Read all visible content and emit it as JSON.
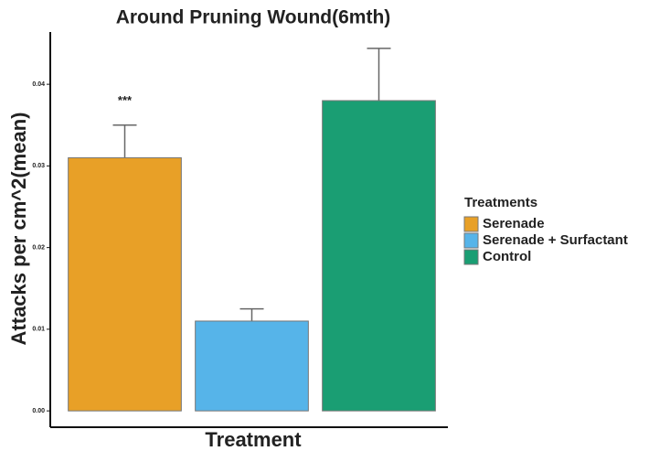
{
  "chart_data": {
    "type": "bar",
    "title": "Around Pruning Wound(6mth)",
    "x_label": "Treatment",
    "y_label": "Attacks per cm^2(mean)",
    "categories": [
      "Serenade",
      "Serenade + Surfactant",
      "Control"
    ],
    "values": [
      0.031,
      0.011,
      0.038
    ],
    "errors": [
      0.004,
      0.0015,
      0.0064
    ],
    "colors": [
      "#e8a027",
      "#56b4e9",
      "#1a9e73"
    ],
    "annotations": [
      "***",
      null,
      null
    ],
    "legend_title": "Treatments",
    "legend_position": "right",
    "ylim": [
      -0.002,
      0.0464
    ],
    "yticks": [
      {
        "value": 0,
        "label": "0.00"
      },
      {
        "value": 0.01,
        "label": "0.01"
      },
      {
        "value": 0.02,
        "label": "0.02"
      },
      {
        "value": 0.03,
        "label": "0.03"
      },
      {
        "value": 0.04,
        "label": "0.04"
      }
    ]
  }
}
